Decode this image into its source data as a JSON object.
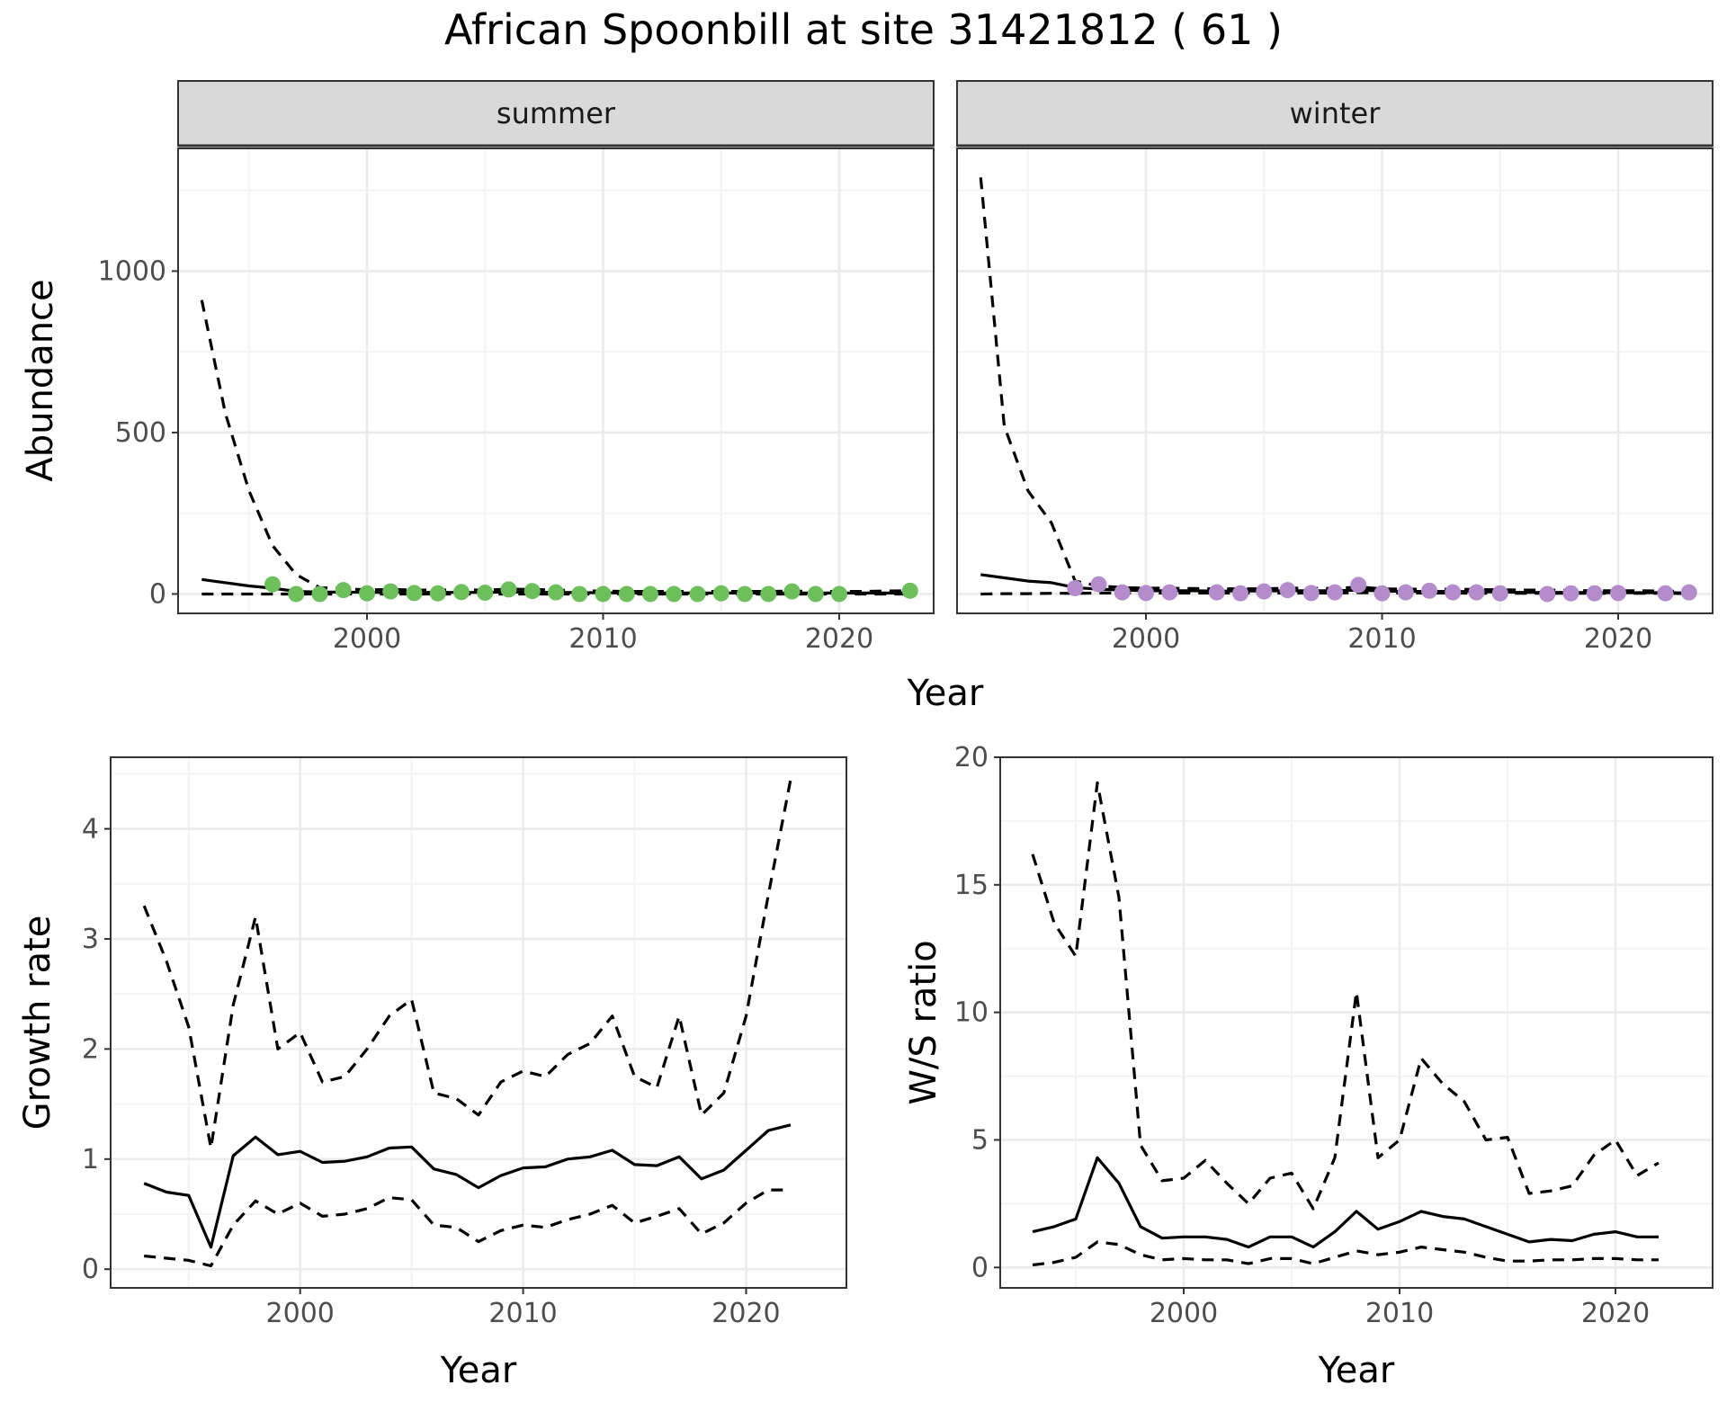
{
  "title": "African Spoonbill at site 31421812 ( 61 )",
  "chart_data": [
    {
      "type": "line",
      "facets": [
        "summer",
        "winter"
      ],
      "xlabel": "Year",
      "ylabel": "Abundance",
      "xlim": [
        1992,
        2024
      ],
      "ylim": [
        -60,
        1380
      ],
      "xticks": [
        2000,
        2010,
        2020
      ],
      "yticks": [
        0,
        500,
        1000
      ],
      "grid": true,
      "summer": {
        "point_color": "#6cbf5a",
        "points": {
          "x": [
            1996,
            1997,
            1998,
            1999,
            2000,
            2001,
            2002,
            2003,
            2004,
            2005,
            2006,
            2007,
            2008,
            2009,
            2010,
            2011,
            2012,
            2013,
            2014,
            2015,
            2016,
            2017,
            2018,
            2019,
            2020,
            2023
          ],
          "y": [
            30,
            0,
            0,
            12,
            2,
            8,
            3,
            2,
            6,
            4,
            14,
            9,
            5,
            0,
            0,
            0,
            0,
            0,
            0,
            2,
            0,
            0,
            8,
            0,
            0,
            10
          ]
        },
        "mean": {
          "x": [
            1993,
            1994,
            1995,
            1996,
            1997,
            1998,
            1999,
            2000,
            2001,
            2002,
            2003,
            2004,
            2005,
            2006,
            2007,
            2008,
            2009,
            2010,
            2011,
            2012,
            2013,
            2014,
            2015,
            2016,
            2017,
            2018,
            2019,
            2020,
            2021,
            2022,
            2023
          ],
          "y": [
            45,
            35,
            25,
            18,
            8,
            6,
            6,
            5,
            5,
            5,
            5,
            5,
            5,
            6,
            6,
            5,
            4,
            4,
            3,
            3,
            3,
            3,
            3,
            3,
            3,
            3,
            3,
            3,
            3,
            3,
            3
          ]
        },
        "upper": {
          "x": [
            1993,
            1994,
            1995,
            1996,
            1997,
            1998,
            1999,
            2000,
            2001,
            2002,
            2003,
            2004,
            2005,
            2006,
            2007,
            2008,
            2009,
            2010,
            2011,
            2012,
            2013,
            2014,
            2015,
            2016,
            2017,
            2018,
            2019,
            2020,
            2021,
            2022,
            2023
          ],
          "y": [
            910,
            560,
            320,
            150,
            60,
            20,
            16,
            13,
            14,
            12,
            12,
            13,
            12,
            15,
            14,
            12,
            10,
            9,
            8,
            8,
            8,
            8,
            8,
            8,
            8,
            9,
            8,
            8,
            8,
            9,
            10
          ]
        },
        "lower": {
          "x": [
            1993,
            1994,
            1995,
            1996,
            1997,
            1998,
            1999,
            2000,
            2001,
            2002,
            2003,
            2004,
            2005,
            2006,
            2007,
            2008,
            2009,
            2010,
            2011,
            2012,
            2013,
            2014,
            2015,
            2016,
            2017,
            2018,
            2019,
            2020,
            2021,
            2022,
            2023
          ],
          "y": [
            0,
            0,
            0,
            0,
            0,
            0,
            0,
            0,
            0,
            0,
            0,
            0,
            0,
            0,
            0,
            0,
            0,
            0,
            0,
            0,
            0,
            0,
            0,
            0,
            0,
            0,
            0,
            0,
            0,
            0,
            0
          ]
        }
      },
      "winter": {
        "point_color": "#b48ccc",
        "points": {
          "x": [
            1997,
            1998,
            1999,
            2000,
            2001,
            2003,
            2004,
            2005,
            2006,
            2007,
            2008,
            2009,
            2010,
            2011,
            2012,
            2013,
            2014,
            2015,
            2017,
            2018,
            2019,
            2020,
            2022,
            2023
          ],
          "y": [
            18,
            30,
            5,
            3,
            5,
            5,
            2,
            8,
            12,
            3,
            5,
            28,
            2,
            5,
            10,
            5,
            5,
            2,
            0,
            2,
            2,
            3,
            2,
            5
          ]
        },
        "mean": {
          "x": [
            1993,
            1994,
            1995,
            1996,
            1997,
            1998,
            1999,
            2000,
            2001,
            2002,
            2003,
            2004,
            2005,
            2006,
            2007,
            2008,
            2009,
            2010,
            2011,
            2012,
            2013,
            2014,
            2015,
            2016,
            2017,
            2018,
            2019,
            2020,
            2021,
            2022,
            2023
          ],
          "y": [
            60,
            50,
            40,
            35,
            20,
            15,
            12,
            10,
            10,
            10,
            9,
            9,
            9,
            10,
            10,
            10,
            12,
            9,
            8,
            8,
            8,
            7,
            6,
            5,
            5,
            5,
            4,
            4,
            4,
            4,
            3
          ]
        },
        "upper": {
          "x": [
            1993,
            1994,
            1995,
            1996,
            1997,
            1998,
            1999,
            2000,
            2001,
            2002,
            2003,
            2004,
            2005,
            2006,
            2007,
            2008,
            2009,
            2010,
            2011,
            2012,
            2013,
            2014,
            2015,
            2016,
            2017,
            2018,
            2019,
            2020,
            2021,
            2022,
            2023
          ],
          "y": [
            1290,
            520,
            320,
            220,
            40,
            25,
            20,
            18,
            18,
            17,
            16,
            16,
            16,
            18,
            18,
            17,
            22,
            16,
            15,
            15,
            15,
            14,
            13,
            12,
            12,
            11,
            10,
            10,
            10,
            9,
            8
          ]
        },
        "lower": {
          "x": [
            1993,
            1994,
            1995,
            1996,
            1997,
            1998,
            1999,
            2000,
            2001,
            2002,
            2003,
            2004,
            2005,
            2006,
            2007,
            2008,
            2009,
            2010,
            2011,
            2012,
            2013,
            2014,
            2015,
            2016,
            2017,
            2018,
            2019,
            2020,
            2021,
            2022,
            2023
          ],
          "y": [
            0,
            1,
            1,
            2,
            2,
            3,
            3,
            3,
            3,
            3,
            3,
            3,
            3,
            3,
            3,
            3,
            4,
            3,
            3,
            3,
            3,
            2,
            2,
            2,
            2,
            2,
            2,
            2,
            2,
            2,
            1
          ]
        }
      }
    },
    {
      "type": "line",
      "xlabel": "Year",
      "ylabel": "Growth rate",
      "xlim": [
        1991.5,
        2024.5
      ],
      "ylim": [
        -0.17,
        4.65
      ],
      "xticks": [
        2000,
        2010,
        2020
      ],
      "yticks": [
        0,
        1,
        2,
        3,
        4
      ],
      "grid": true,
      "x": [
        1993,
        1994,
        1995,
        1996,
        1997,
        1998,
        1999,
        2000,
        2001,
        2002,
        2003,
        2004,
        2005,
        2006,
        2007,
        2008,
        2009,
        2010,
        2011,
        2012,
        2013,
        2014,
        2015,
        2016,
        2017,
        2018,
        2019,
        2020,
        2021,
        2022
      ],
      "series": [
        {
          "role": "mean",
          "values": [
            0.78,
            0.7,
            0.67,
            0.2,
            1.03,
            1.2,
            1.04,
            1.07,
            0.97,
            0.98,
            1.02,
            1.1,
            1.11,
            0.91,
            0.86,
            0.74,
            0.85,
            0.92,
            0.93,
            1.0,
            1.02,
            1.08,
            0.95,
            0.94,
            1.02,
            0.82,
            0.9,
            1.08,
            1.26,
            1.31
          ]
        },
        {
          "role": "upper",
          "values": [
            3.3,
            2.8,
            2.2,
            1.1,
            2.4,
            3.2,
            2.0,
            2.15,
            1.7,
            1.75,
            2.0,
            2.3,
            2.45,
            1.6,
            1.55,
            1.4,
            1.7,
            1.8,
            1.75,
            1.95,
            2.05,
            2.3,
            1.75,
            1.65,
            2.3,
            1.4,
            1.6,
            2.3,
            3.4,
            4.45
          ]
        },
        {
          "role": "lower",
          "values": [
            0.12,
            0.1,
            0.08,
            0.03,
            0.4,
            0.62,
            0.5,
            0.6,
            0.48,
            0.5,
            0.55,
            0.65,
            0.63,
            0.4,
            0.38,
            0.25,
            0.35,
            0.4,
            0.38,
            0.45,
            0.5,
            0.58,
            0.42,
            0.48,
            0.55,
            0.32,
            0.42,
            0.6,
            0.72,
            0.72
          ]
        }
      ]
    },
    {
      "type": "line",
      "xlabel": "Year",
      "ylabel": "W/S ratio",
      "xlim": [
        1991.5,
        2024.5
      ],
      "ylim": [
        -0.8,
        20.0
      ],
      "xticks": [
        2000,
        2010,
        2020
      ],
      "yticks": [
        0,
        5,
        10,
        15,
        20
      ],
      "grid": true,
      "x": [
        1993,
        1994,
        1995,
        1996,
        1997,
        1998,
        1999,
        2000,
        2001,
        2002,
        2003,
        2004,
        2005,
        2006,
        2007,
        2008,
        2009,
        2010,
        2011,
        2012,
        2013,
        2014,
        2015,
        2016,
        2017,
        2018,
        2019,
        2020,
        2021,
        2022
      ],
      "series": [
        {
          "role": "mean",
          "values": [
            1.4,
            1.6,
            1.9,
            4.3,
            3.3,
            1.6,
            1.15,
            1.2,
            1.2,
            1.1,
            0.8,
            1.2,
            1.2,
            0.8,
            1.4,
            2.2,
            1.5,
            1.8,
            2.2,
            2.0,
            1.9,
            1.6,
            1.3,
            1.0,
            1.1,
            1.05,
            1.3,
            1.4,
            1.2,
            1.2
          ]
        },
        {
          "role": "upper",
          "values": [
            16.2,
            13.5,
            12.2,
            19.0,
            14.5,
            4.8,
            3.4,
            3.5,
            4.2,
            3.3,
            2.5,
            3.5,
            3.7,
            2.3,
            4.3,
            10.8,
            4.3,
            5.0,
            8.2,
            7.2,
            6.5,
            5.0,
            5.1,
            2.9,
            3.0,
            3.2,
            4.4,
            5.0,
            3.6,
            4.1
          ]
        },
        {
          "role": "lower",
          "values": [
            0.1,
            0.2,
            0.4,
            1.0,
            0.9,
            0.5,
            0.3,
            0.35,
            0.3,
            0.3,
            0.15,
            0.35,
            0.35,
            0.15,
            0.4,
            0.65,
            0.5,
            0.6,
            0.8,
            0.7,
            0.6,
            0.4,
            0.25,
            0.25,
            0.3,
            0.3,
            0.35,
            0.35,
            0.3,
            0.3
          ]
        }
      ]
    }
  ]
}
